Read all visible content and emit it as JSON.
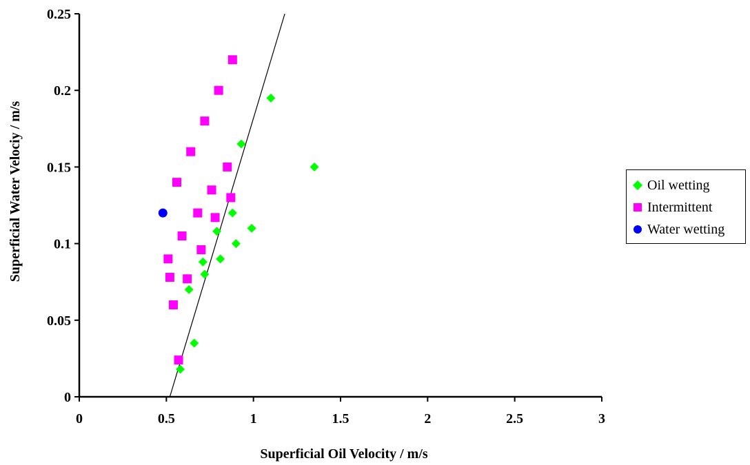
{
  "chart_data": {
    "type": "scatter",
    "xlabel": "Superficial Oil Velocity /  m/s",
    "ylabel": "Superficial Water Velociy / m/s",
    "xlim": [
      0,
      3
    ],
    "ylim": [
      0,
      0.25
    ],
    "x_ticks": [
      "0",
      "0.5",
      "1",
      "1.5",
      "2",
      "2.5",
      "3"
    ],
    "y_ticks": [
      "0",
      "0.05",
      "0.1",
      "0.15",
      "0.2",
      "0.25"
    ],
    "grid": false,
    "legend_position": "right",
    "series": [
      {
        "name": "Oil wetting",
        "marker": "diamond",
        "color": "#00ff00",
        "points": [
          [
            1.1,
            0.195
          ],
          [
            1.35,
            0.15
          ],
          [
            0.93,
            0.165
          ],
          [
            0.88,
            0.12
          ],
          [
            0.99,
            0.11
          ],
          [
            0.79,
            0.108
          ],
          [
            0.9,
            0.1
          ],
          [
            0.81,
            0.09
          ],
          [
            0.71,
            0.088
          ],
          [
            0.72,
            0.08
          ],
          [
            0.63,
            0.07
          ],
          [
            0.66,
            0.035
          ],
          [
            0.58,
            0.018
          ]
        ]
      },
      {
        "name": "Intermittent",
        "marker": "square",
        "color": "#ff00ff",
        "points": [
          [
            0.88,
            0.22
          ],
          [
            0.8,
            0.2
          ],
          [
            0.72,
            0.18
          ],
          [
            0.64,
            0.16
          ],
          [
            0.85,
            0.15
          ],
          [
            0.56,
            0.14
          ],
          [
            0.76,
            0.135
          ],
          [
            0.87,
            0.13
          ],
          [
            0.68,
            0.12
          ],
          [
            0.78,
            0.117
          ],
          [
            0.59,
            0.105
          ],
          [
            0.7,
            0.096
          ],
          [
            0.51,
            0.09
          ],
          [
            0.52,
            0.078
          ],
          [
            0.62,
            0.077
          ],
          [
            0.54,
            0.06
          ],
          [
            0.57,
            0.024
          ]
        ]
      },
      {
        "name": "Water wetting",
        "marker": "circle",
        "color": "#0000ff",
        "points": [
          [
            0.48,
            0.12
          ]
        ]
      }
    ],
    "trend_line": {
      "points": [
        [
          0.52,
          0
        ],
        [
          1.18,
          0.25
        ]
      ],
      "color": "#000000"
    }
  }
}
